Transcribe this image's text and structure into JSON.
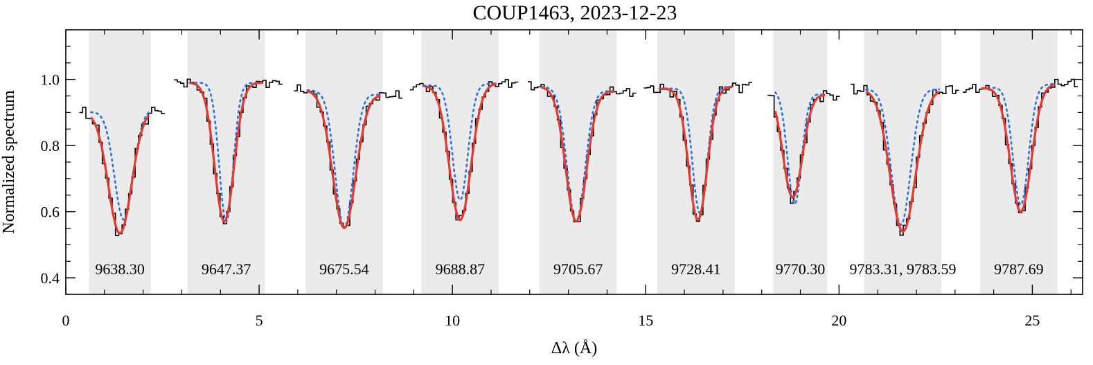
{
  "chart_data": {
    "type": "line",
    "title": "COUP1463, 2023-12-23",
    "xlabel": "Δλ (Å)",
    "ylabel": "Normalized spectrum",
    "xlim": [
      0,
      26.3
    ],
    "ylim": [
      0.35,
      1.15
    ],
    "x_ticks": [
      {
        "value": 0,
        "label": "0"
      },
      {
        "value": 5,
        "label": "5"
      },
      {
        "value": 10,
        "label": "10"
      },
      {
        "value": 15,
        "label": "15"
      },
      {
        "value": 20,
        "label": "20"
      },
      {
        "value": 25,
        "label": "25"
      }
    ],
    "y_ticks": [
      {
        "value": 0.4,
        "label": "0.4"
      },
      {
        "value": 0.6,
        "label": "0.6"
      },
      {
        "value": 0.8,
        "label": "0.8"
      },
      {
        "value": 1.0,
        "label": "1.0"
      }
    ],
    "colors": {
      "observed": "#000000",
      "fit_solid": "#e03c31",
      "fit_dotted": "#2f6fe4",
      "fit_band": "#ebebeb"
    },
    "lines": [
      {
        "label": "9638.30",
        "band": [
          0.6,
          2.2
        ],
        "center": 1.4,
        "sigma": 0.3,
        "data_range": [
          0.35,
          2.5
        ],
        "continuum": [
          0.9,
          0.91
        ],
        "solid_depth": 0.37,
        "dotted_depth": 0.33,
        "dotted_sigma": 0.24,
        "dotted_center": 1.5,
        "noise_amp": 0.02
      },
      {
        "label": "9647.37",
        "band": [
          3.15,
          5.15
        ],
        "center": 4.1,
        "sigma": 0.25,
        "data_range": [
          2.8,
          5.55
        ],
        "continuum": [
          0.99,
          0.99
        ],
        "solid_depth": 0.42,
        "dotted_depth": 0.42,
        "dotted_sigma": 0.18,
        "dotted_center": 4.15,
        "noise_amp": 0.015
      },
      {
        "label": "9675.54",
        "band": [
          6.2,
          8.2
        ],
        "center": 7.2,
        "sigma": 0.3,
        "data_range": [
          5.9,
          8.65
        ],
        "continuum": [
          0.97,
          0.95
        ],
        "solid_depth": 0.41,
        "dotted_depth": 0.41,
        "dotted_sigma": 0.23,
        "dotted_center": 7.2,
        "noise_amp": 0.015
      },
      {
        "label": "9688.87",
        "band": [
          9.2,
          11.2
        ],
        "center": 10.2,
        "sigma": 0.28,
        "data_range": [
          8.9,
          11.65
        ],
        "continuum": [
          0.98,
          0.99
        ],
        "solid_depth": 0.41,
        "dotted_depth": 0.35,
        "dotted_sigma": 0.2,
        "dotted_center": 10.2,
        "noise_amp": 0.015
      },
      {
        "label": "9705.67",
        "band": [
          12.25,
          14.25
        ],
        "center": 13.2,
        "sigma": 0.27,
        "data_range": [
          11.95,
          14.7
        ],
        "continuum": [
          0.98,
          0.96
        ],
        "solid_depth": 0.4,
        "dotted_depth": 0.4,
        "dotted_sigma": 0.23,
        "dotted_center": 13.2,
        "noise_amp": 0.015
      },
      {
        "label": "9728.41",
        "band": [
          15.3,
          17.3
        ],
        "center": 16.35,
        "sigma": 0.24,
        "data_range": [
          14.95,
          17.75
        ],
        "continuum": [
          0.97,
          0.98
        ],
        "solid_depth": 0.4,
        "dotted_depth": 0.38,
        "dotted_sigma": 0.19,
        "dotted_center": 16.4,
        "noise_amp": 0.02
      },
      {
        "label": "9770.30",
        "band": [
          18.3,
          19.7
        ],
        "center": 18.8,
        "sigma": 0.25,
        "data_range": [
          18.15,
          19.95
        ],
        "continuum": [
          0.97,
          0.95
        ],
        "solid_depth": 0.32,
        "dotted_depth": 0.34,
        "dotted_sigma": 0.18,
        "dotted_center": 18.85,
        "noise_amp": 0.02
      },
      {
        "label": "9783.31, 9783.59",
        "band": [
          20.65,
          22.65
        ],
        "center": 21.65,
        "sigma": 0.33,
        "data_range": [
          20.3,
          23.05
        ],
        "continuum": [
          0.97,
          0.97
        ],
        "solid_depth": 0.43,
        "dotted_depth": 0.41,
        "dotted_sigma": 0.25,
        "dotted_center": 21.6,
        "noise_amp": 0.02
      },
      {
        "label": "9787.69",
        "band": [
          23.65,
          25.65
        ],
        "center": 24.7,
        "sigma": 0.27,
        "data_range": [
          23.2,
          26.1
        ],
        "continuum": [
          0.97,
          0.99
        ],
        "solid_depth": 0.38,
        "dotted_depth": 0.36,
        "dotted_sigma": 0.2,
        "dotted_center": 24.7,
        "noise_amp": 0.015
      }
    ]
  }
}
